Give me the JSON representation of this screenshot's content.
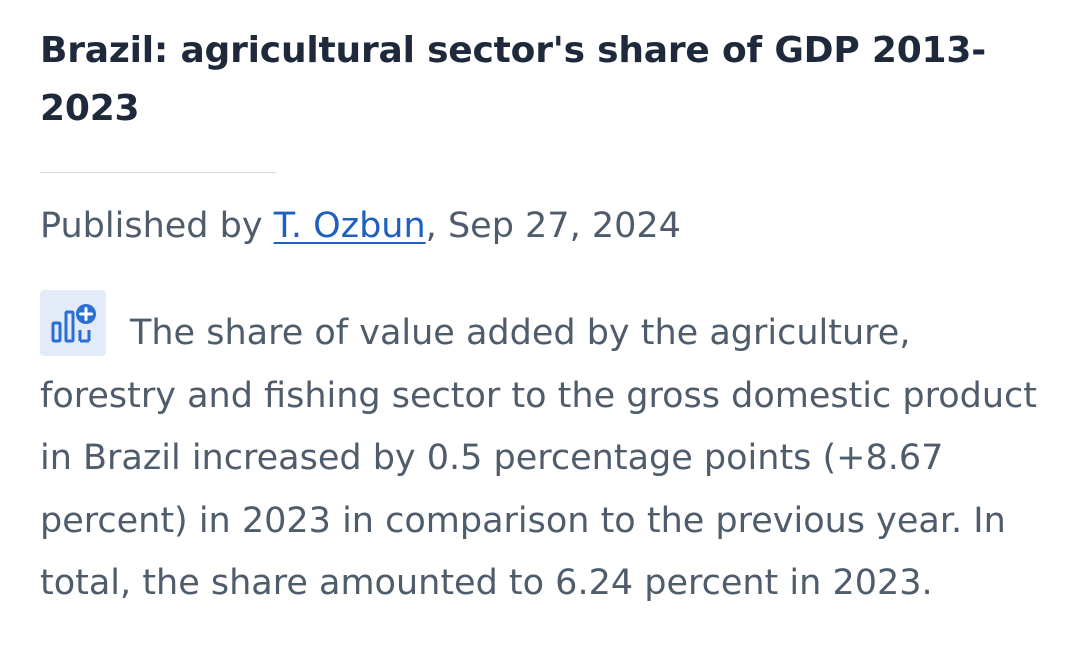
{
  "title": "Brazil: agricultural sector's share of GDP 2013-2023",
  "byline": {
    "prefix": "Published by ",
    "author": "T. Ozbun",
    "separator": ", ",
    "date": "Sep 27, 2024"
  },
  "description": "The share of value added by the agriculture, forestry and fishing sector to the gross domestic product in Brazil increased by 0.5 percentage points (+8.67 percent) in 2023 in comparison to the previous year. In total, the share amounted to 6.24 percent in 2023.",
  "icon": "statistic-chart-plus-icon",
  "colors": {
    "title": "#1e2a3b",
    "text": "#4f5c6b",
    "link": "#1f5fbf",
    "badge_bg": "#e2ebf7",
    "badge_icon": "#2b6fd6"
  }
}
